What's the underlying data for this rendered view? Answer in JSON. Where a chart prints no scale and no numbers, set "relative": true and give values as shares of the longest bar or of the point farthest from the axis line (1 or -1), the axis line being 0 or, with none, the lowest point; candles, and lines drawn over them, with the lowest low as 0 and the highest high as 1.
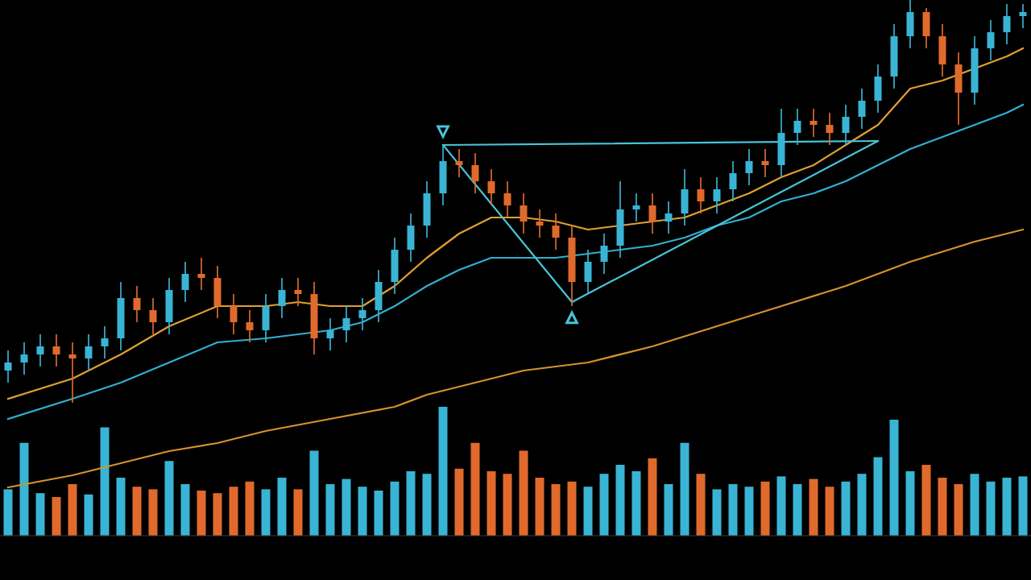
{
  "chart_data": [
    {
      "type": "candlestick",
      "relative": true,
      "categories": [
        null,
        null,
        null,
        null,
        null,
        null,
        null,
        null,
        null,
        null,
        null,
        null,
        null,
        null,
        null,
        null,
        null,
        null,
        null,
        null,
        null,
        null,
        null,
        null,
        null,
        null,
        null,
        null,
        null,
        null,
        null,
        null,
        null,
        null,
        null,
        null,
        null,
        null,
        null,
        null,
        null,
        null,
        null,
        null,
        null,
        null,
        null,
        null,
        null,
        null,
        null,
        null,
        null,
        null,
        null,
        null,
        null,
        null,
        null,
        null,
        null,
        null,
        null,
        null
      ],
      "ohlc": [
        [
          0.08,
          0.13,
          0.05,
          0.1
        ],
        [
          0.1,
          0.15,
          0.07,
          0.12
        ],
        [
          0.12,
          0.17,
          0.09,
          0.14
        ],
        [
          0.14,
          0.17,
          0.09,
          0.12
        ],
        [
          0.12,
          0.15,
          0.0,
          0.11
        ],
        [
          0.11,
          0.17,
          0.08,
          0.14
        ],
        [
          0.14,
          0.19,
          0.11,
          0.16
        ],
        [
          0.16,
          0.3,
          0.13,
          0.26
        ],
        [
          0.26,
          0.29,
          0.2,
          0.23
        ],
        [
          0.23,
          0.26,
          0.17,
          0.2
        ],
        [
          0.2,
          0.31,
          0.17,
          0.28
        ],
        [
          0.28,
          0.35,
          0.25,
          0.32
        ],
        [
          0.32,
          0.36,
          0.28,
          0.31
        ],
        [
          0.31,
          0.34,
          0.21,
          0.24
        ],
        [
          0.24,
          0.27,
          0.17,
          0.2
        ],
        [
          0.2,
          0.23,
          0.15,
          0.18
        ],
        [
          0.18,
          0.27,
          0.15,
          0.24
        ],
        [
          0.24,
          0.31,
          0.21,
          0.28
        ],
        [
          0.28,
          0.31,
          0.24,
          0.27
        ],
        [
          0.27,
          0.3,
          0.12,
          0.16
        ],
        [
          0.16,
          0.21,
          0.13,
          0.18
        ],
        [
          0.18,
          0.24,
          0.15,
          0.21
        ],
        [
          0.21,
          0.26,
          0.18,
          0.23
        ],
        [
          0.23,
          0.33,
          0.2,
          0.3
        ],
        [
          0.3,
          0.41,
          0.27,
          0.38
        ],
        [
          0.38,
          0.47,
          0.35,
          0.44
        ],
        [
          0.44,
          0.55,
          0.41,
          0.52
        ],
        [
          0.52,
          0.64,
          0.49,
          0.6
        ],
        [
          0.6,
          0.63,
          0.56,
          0.59
        ],
        [
          0.59,
          0.62,
          0.52,
          0.55
        ],
        [
          0.55,
          0.58,
          0.49,
          0.52
        ],
        [
          0.52,
          0.55,
          0.46,
          0.49
        ],
        [
          0.49,
          0.52,
          0.42,
          0.45
        ],
        [
          0.45,
          0.48,
          0.41,
          0.44
        ],
        [
          0.44,
          0.47,
          0.38,
          0.41
        ],
        [
          0.41,
          0.44,
          0.24,
          0.3
        ],
        [
          0.3,
          0.38,
          0.27,
          0.35
        ],
        [
          0.35,
          0.42,
          0.32,
          0.39
        ],
        [
          0.39,
          0.55,
          0.36,
          0.48
        ],
        [
          0.48,
          0.52,
          0.45,
          0.49
        ],
        [
          0.49,
          0.52,
          0.42,
          0.45
        ],
        [
          0.45,
          0.5,
          0.42,
          0.47
        ],
        [
          0.47,
          0.58,
          0.44,
          0.53
        ],
        [
          0.53,
          0.56,
          0.47,
          0.5
        ],
        [
          0.5,
          0.56,
          0.47,
          0.53
        ],
        [
          0.53,
          0.6,
          0.5,
          0.57
        ],
        [
          0.57,
          0.63,
          0.54,
          0.6
        ],
        [
          0.6,
          0.63,
          0.56,
          0.59
        ],
        [
          0.59,
          0.73,
          0.56,
          0.67
        ],
        [
          0.67,
          0.73,
          0.64,
          0.7
        ],
        [
          0.7,
          0.73,
          0.66,
          0.69
        ],
        [
          0.69,
          0.72,
          0.64,
          0.67
        ],
        [
          0.67,
          0.74,
          0.64,
          0.71
        ],
        [
          0.71,
          0.78,
          0.68,
          0.75
        ],
        [
          0.75,
          0.84,
          0.72,
          0.81
        ],
        [
          0.81,
          0.94,
          0.78,
          0.91
        ],
        [
          0.91,
          1.0,
          0.88,
          0.97
        ],
        [
          0.97,
          0.98,
          0.88,
          0.91
        ],
        [
          0.91,
          0.94,
          0.81,
          0.84
        ],
        [
          0.84,
          0.87,
          0.69,
          0.77
        ],
        [
          0.77,
          0.91,
          0.74,
          0.88
        ],
        [
          0.88,
          0.95,
          0.85,
          0.92
        ],
        [
          0.92,
          0.99,
          0.89,
          0.96
        ],
        [
          0.96,
          0.99,
          0.93,
          0.97
        ]
      ],
      "colors": [
        "#3ab4d4",
        "#3ab4d4",
        "#3ab4d4",
        "#e06a2c",
        "#e06a2c",
        "#3ab4d4",
        "#3ab4d4",
        "#3ab4d4",
        "#e06a2c",
        "#e06a2c",
        "#3ab4d4",
        "#3ab4d4",
        "#e06a2c",
        "#e06a2c",
        "#e06a2c",
        "#e06a2c",
        "#3ab4d4",
        "#3ab4d4",
        "#e06a2c",
        "#e06a2c",
        "#3ab4d4",
        "#3ab4d4",
        "#3ab4d4",
        "#3ab4d4",
        "#3ab4d4",
        "#3ab4d4",
        "#3ab4d4",
        "#3ab4d4",
        "#e06a2c",
        "#e06a2c",
        "#e06a2c",
        "#e06a2c",
        "#e06a2c",
        "#e06a2c",
        "#e06a2c",
        "#e06a2c",
        "#3ab4d4",
        "#3ab4d4",
        "#3ab4d4",
        "#3ab4d4",
        "#e06a2c",
        "#3ab4d4",
        "#3ab4d4",
        "#e06a2c",
        "#3ab4d4",
        "#3ab4d4",
        "#3ab4d4",
        "#e06a2c",
        "#3ab4d4",
        "#3ab4d4",
        "#e06a2c",
        "#e06a2c",
        "#3ab4d4",
        "#3ab4d4",
        "#3ab4d4",
        "#3ab4d4",
        "#3ab4d4",
        "#e06a2c",
        "#e06a2c",
        "#e06a2c",
        "#3ab4d4",
        "#3ab4d4",
        "#3ab4d4",
        "#3ab4d4"
      ],
      "series": [
        {
          "type": "line",
          "color": "#d4922c",
          "values": [
            -0.21,
            null,
            null,
            null,
            -0.18,
            null,
            null,
            -0.15,
            null,
            null,
            -0.12,
            null,
            null,
            -0.1,
            null,
            null,
            -0.07,
            null,
            null,
            null,
            -0.04,
            null,
            null,
            null,
            -0.01,
            null,
            0.02,
            null,
            0.04,
            null,
            null,
            null,
            0.08,
            null,
            null,
            null,
            0.1,
            null,
            null,
            null,
            0.14,
            null,
            null,
            null,
            0.19,
            null,
            null,
            null,
            0.24,
            null,
            null,
            null,
            0.29,
            null,
            null,
            null,
            0.35,
            null,
            null,
            null,
            0.4,
            null,
            null,
            0.43
          ]
        },
        {
          "type": "line",
          "color": "#30b0d0",
          "values": [
            -0.04,
            null,
            null,
            null,
            0.01,
            null,
            null,
            0.05,
            null,
            null,
            0.1,
            null,
            null,
            0.15,
            null,
            null,
            0.16,
            null,
            null,
            null,
            0.18,
            null,
            0.2,
            null,
            0.24,
            null,
            0.29,
            null,
            0.33,
            null,
            0.36,
            null,
            0.36,
            null,
            0.36,
            null,
            0.37,
            null,
            0.38,
            null,
            0.39,
            null,
            0.41,
            null,
            0.44,
            null,
            0.46,
            null,
            0.5,
            null,
            0.52,
            null,
            0.55,
            null,
            0.59,
            null,
            0.63,
            null,
            0.66,
            null,
            0.69,
            null,
            0.72,
            0.74
          ]
        },
        {
          "type": "line",
          "color": "#e0a030",
          "values": [
            0.01,
            null,
            null,
            null,
            0.06,
            null,
            null,
            0.12,
            null,
            null,
            0.19,
            null,
            null,
            0.24,
            null,
            null,
            0.24,
            null,
            0.25,
            null,
            0.24,
            null,
            0.24,
            null,
            0.29,
            null,
            0.36,
            null,
            0.42,
            null,
            0.46,
            null,
            0.46,
            null,
            0.45,
            null,
            0.43,
            null,
            0.44,
            null,
            0.45,
            null,
            0.46,
            null,
            0.49,
            null,
            0.52,
            null,
            0.56,
            null,
            0.59,
            null,
            0.64,
            null,
            0.69,
            null,
            0.78,
            null,
            0.8,
            null,
            null,
            null,
            0.86,
            0.88
          ]
        },
        {
          "type": "line",
          "color": "#48c4d8",
          "values": [
            null,
            null,
            null,
            null,
            null,
            null,
            null,
            null,
            null,
            null,
            null,
            null,
            null,
            null,
            null,
            null,
            null,
            null,
            null,
            null,
            null,
            null,
            null,
            null,
            null,
            null,
            null,
            0.64,
            null,
            null,
            null,
            null,
            null,
            null,
            null,
            null,
            null,
            null,
            null,
            null,
            null,
            null,
            null,
            null,
            null,
            null,
            null,
            null,
            null,
            null,
            null,
            null,
            null,
            null,
            0.65,
            null,
            null,
            null,
            null,
            null,
            null,
            null,
            null,
            null
          ]
        },
        {
          "type": "line",
          "color": "#48c4d8",
          "values": [
            null,
            null,
            null,
            null,
            null,
            null,
            null,
            null,
            null,
            null,
            null,
            null,
            null,
            null,
            null,
            null,
            null,
            null,
            null,
            null,
            null,
            null,
            null,
            null,
            null,
            null,
            null,
            0.64,
            null,
            null,
            null,
            null,
            null,
            null,
            null,
            0.25,
            null,
            null,
            null,
            null,
            null,
            null,
            null,
            null,
            null,
            null,
            null,
            null,
            null,
            null,
            null,
            null,
            null,
            null,
            0.65,
            null,
            null,
            null,
            null,
            null,
            null,
            null,
            null,
            null
          ]
        }
      ]
    },
    {
      "type": "bar",
      "relative": true,
      "categories": [
        null,
        null,
        null,
        null,
        null,
        null,
        null,
        null,
        null,
        null,
        null,
        null,
        null,
        null,
        null,
        null,
        null,
        null,
        null,
        null,
        null,
        null,
        null,
        null,
        null,
        null,
        null,
        null,
        null,
        null,
        null,
        null,
        null,
        null,
        null,
        null,
        null,
        null,
        null,
        null,
        null,
        null,
        null,
        null,
        null,
        null,
        null,
        null,
        null,
        null,
        null,
        null,
        null,
        null,
        null,
        null,
        null,
        null,
        null,
        null,
        null,
        null,
        null,
        null
      ],
      "values": [
        0.36,
        0.72,
        0.33,
        0.3,
        0.4,
        0.32,
        0.84,
        0.45,
        0.38,
        0.36,
        0.58,
        0.4,
        0.35,
        0.33,
        0.38,
        0.42,
        0.36,
        0.45,
        0.36,
        0.66,
        0.4,
        0.44,
        0.38,
        0.35,
        0.42,
        0.5,
        0.48,
        1.0,
        0.52,
        0.72,
        0.5,
        0.48,
        0.66,
        0.45,
        0.4,
        0.42,
        0.38,
        0.48,
        0.55,
        0.5,
        0.6,
        0.4,
        0.72,
        0.48,
        0.36,
        0.4,
        0.38,
        0.42,
        0.46,
        0.4,
        0.44,
        0.38,
        0.42,
        0.48,
        0.61,
        0.9,
        0.5,
        0.55,
        0.45,
        0.4,
        0.48,
        0.42,
        0.45,
        0.46
      ],
      "colors": [
        "#3ab4d4",
        "#3ab4d4",
        "#3ab4d4",
        "#e06a2c",
        "#e06a2c",
        "#3ab4d4",
        "#3ab4d4",
        "#3ab4d4",
        "#e06a2c",
        "#e06a2c",
        "#3ab4d4",
        "#3ab4d4",
        "#e06a2c",
        "#e06a2c",
        "#e06a2c",
        "#e06a2c",
        "#3ab4d4",
        "#3ab4d4",
        "#e06a2c",
        "#3ab4d4",
        "#3ab4d4",
        "#3ab4d4",
        "#3ab4d4",
        "#3ab4d4",
        "#3ab4d4",
        "#3ab4d4",
        "#3ab4d4",
        "#3ab4d4",
        "#e06a2c",
        "#e06a2c",
        "#e06a2c",
        "#e06a2c",
        "#e06a2c",
        "#e06a2c",
        "#e06a2c",
        "#e06a2c",
        "#3ab4d4",
        "#3ab4d4",
        "#3ab4d4",
        "#3ab4d4",
        "#e06a2c",
        "#3ab4d4",
        "#3ab4d4",
        "#e06a2c",
        "#3ab4d4",
        "#3ab4d4",
        "#3ab4d4",
        "#e06a2c",
        "#3ab4d4",
        "#3ab4d4",
        "#e06a2c",
        "#e06a2c",
        "#3ab4d4",
        "#3ab4d4",
        "#3ab4d4",
        "#3ab4d4",
        "#3ab4d4",
        "#e06a2c",
        "#e06a2c",
        "#e06a2c",
        "#3ab4d4",
        "#3ab4d4",
        "#3ab4d4",
        "#3ab4d4"
      ]
    }
  ]
}
